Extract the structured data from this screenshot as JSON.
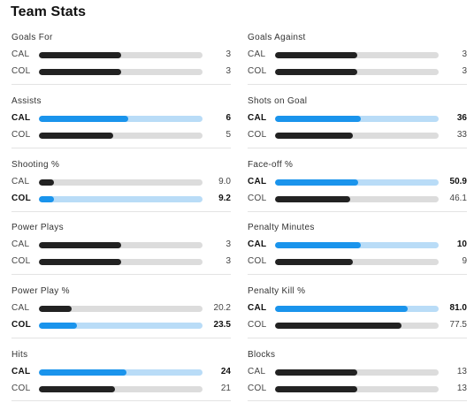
{
  "title": "Team Stats",
  "colors": {
    "leader_fill": "#1a94ec",
    "leader_track": "#b9dcf7",
    "normal_fill": "#222222",
    "normal_track": "#dcdcdc"
  },
  "stats": [
    {
      "label": "Goals For",
      "rows": [
        {
          "team": "CAL",
          "value": "3",
          "share": 0.5,
          "lead": false
        },
        {
          "team": "COL",
          "value": "3",
          "share": 0.5,
          "lead": false
        }
      ]
    },
    {
      "label": "Goals Against",
      "rows": [
        {
          "team": "CAL",
          "value": "3",
          "share": 0.5,
          "lead": false
        },
        {
          "team": "COL",
          "value": "3",
          "share": 0.5,
          "lead": false
        }
      ]
    },
    {
      "label": "Assists",
      "rows": [
        {
          "team": "CAL",
          "value": "6",
          "share": 0.545,
          "lead": true
        },
        {
          "team": "COL",
          "value": "5",
          "share": 0.455,
          "lead": false
        }
      ]
    },
    {
      "label": "Shots on Goal",
      "rows": [
        {
          "team": "CAL",
          "value": "36",
          "share": 0.522,
          "lead": true
        },
        {
          "team": "COL",
          "value": "33",
          "share": 0.478,
          "lead": false
        }
      ]
    },
    {
      "label": "Shooting %",
      "rows": [
        {
          "team": "CAL",
          "value": "9.0",
          "share": 0.09,
          "lead": false
        },
        {
          "team": "COL",
          "value": "9.2",
          "share": 0.092,
          "lead": true
        }
      ]
    },
    {
      "label": "Face-off %",
      "rows": [
        {
          "team": "CAL",
          "value": "50.9",
          "share": 0.509,
          "lead": true
        },
        {
          "team": "COL",
          "value": "46.1",
          "share": 0.461,
          "lead": false
        }
      ]
    },
    {
      "label": "Power Plays",
      "rows": [
        {
          "team": "CAL",
          "value": "3",
          "share": 0.5,
          "lead": false
        },
        {
          "team": "COL",
          "value": "3",
          "share": 0.5,
          "lead": false
        }
      ]
    },
    {
      "label": "Penalty Minutes",
      "rows": [
        {
          "team": "CAL",
          "value": "10",
          "share": 0.526,
          "lead": true
        },
        {
          "team": "COL",
          "value": "9",
          "share": 0.474,
          "lead": false
        }
      ]
    },
    {
      "label": "Power Play %",
      "rows": [
        {
          "team": "CAL",
          "value": "20.2",
          "share": 0.202,
          "lead": false
        },
        {
          "team": "COL",
          "value": "23.5",
          "share": 0.235,
          "lead": true
        }
      ]
    },
    {
      "label": "Penalty Kill %",
      "rows": [
        {
          "team": "CAL",
          "value": "81.0",
          "share": 0.81,
          "lead": true
        },
        {
          "team": "COL",
          "value": "77.5",
          "share": 0.775,
          "lead": false
        }
      ]
    },
    {
      "label": "Hits",
      "rows": [
        {
          "team": "CAL",
          "value": "24",
          "share": 0.533,
          "lead": true
        },
        {
          "team": "COL",
          "value": "21",
          "share": 0.467,
          "lead": false
        }
      ]
    },
    {
      "label": "Blocks",
      "rows": [
        {
          "team": "CAL",
          "value": "13",
          "share": 0.5,
          "lead": false
        },
        {
          "team": "COL",
          "value": "13",
          "share": 0.5,
          "lead": false
        }
      ]
    }
  ]
}
